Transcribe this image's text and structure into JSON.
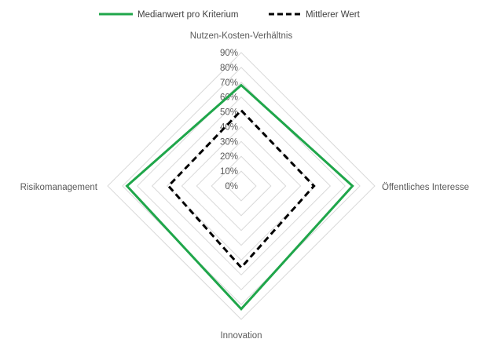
{
  "chart_data": {
    "type": "radar",
    "title": "",
    "axes": [
      "Nutzen-Kosten-Verhältnis",
      "Öffentliches Interesse",
      "Innovation",
      "Risikomanagement"
    ],
    "ticks": [
      "0%",
      "10%",
      "20%",
      "30%",
      "40%",
      "50%",
      "60%",
      "70%",
      "80%",
      "90%"
    ],
    "rmin": 0,
    "rmax": 0.9,
    "grid": true,
    "legend_position": "top",
    "series": [
      {
        "name": "Medianwert pro Kriterium",
        "values": [
          0.68,
          0.75,
          0.83,
          0.77
        ],
        "color": "#1fa64a",
        "dash": "solid"
      },
      {
        "name": "Mittlerer Wert",
        "values": [
          0.51,
          0.49,
          0.55,
          0.49
        ],
        "color": "#000000",
        "dash": "dashed"
      }
    ]
  }
}
